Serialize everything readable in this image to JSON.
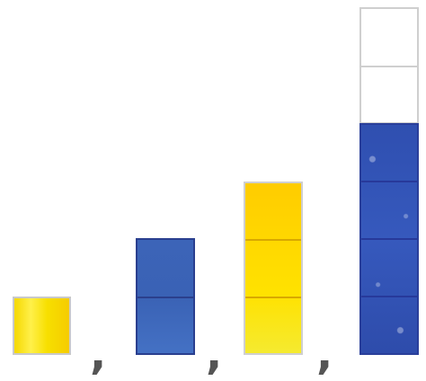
{
  "sequence": {
    "separator": ",",
    "stacks": [
      {
        "filled_cells": 1,
        "empty_cells": 0,
        "color": "#f7dc00"
      },
      {
        "filled_cells": 2,
        "empty_cells": 0,
        "color": "#3c64b8"
      },
      {
        "filled_cells": 3,
        "empty_cells": 0,
        "color": "#ffd800"
      },
      {
        "filled_cells": 4,
        "empty_cells": 2,
        "color": "#3357bb"
      }
    ]
  }
}
